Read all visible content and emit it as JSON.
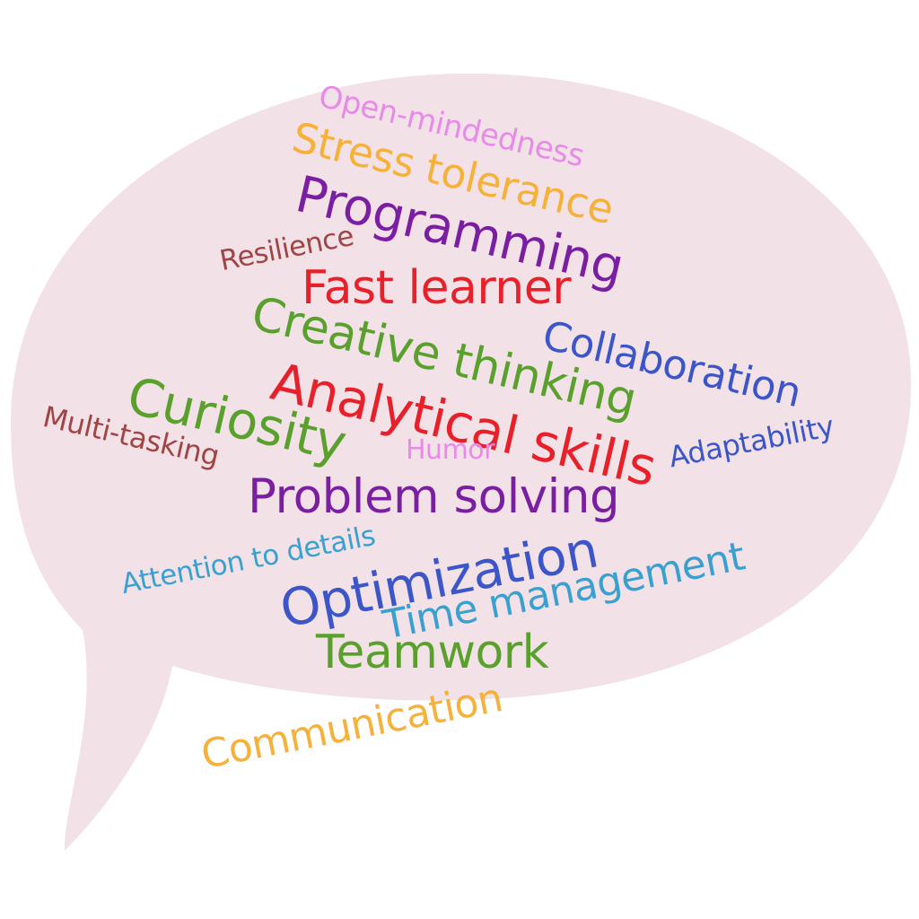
{
  "bubble": {
    "fill": "#f2e2e8"
  },
  "words": [
    {
      "id": "open-mindedness",
      "text": "Open-mindedness",
      "color": "#e88ae8"
    },
    {
      "id": "stress-tolerance",
      "text": "Stress tolerance",
      "color": "#f6b13a"
    },
    {
      "id": "programming",
      "text": "Programming",
      "color": "#7a1fa2"
    },
    {
      "id": "resilience",
      "text": "Resilience",
      "color": "#a04545"
    },
    {
      "id": "fast-learner",
      "text": "Fast learner",
      "color": "#e8202a"
    },
    {
      "id": "creative-thinking",
      "text": "Creative thinking",
      "color": "#5aa02c"
    },
    {
      "id": "collaboration",
      "text": "Collaboration",
      "color": "#3c55c8"
    },
    {
      "id": "analytical-skills",
      "text": "Analytical skills",
      "color": "#e8202a"
    },
    {
      "id": "curiosity",
      "text": "Curiosity",
      "color": "#5aa02c"
    },
    {
      "id": "multi-tasking",
      "text": "Multi-tasking",
      "color": "#a04545"
    },
    {
      "id": "humor",
      "text": "Humor",
      "color": "#e88ae8"
    },
    {
      "id": "adaptability",
      "text": "Adaptability",
      "color": "#3c55c8"
    },
    {
      "id": "problem-solving",
      "text": "Problem solving",
      "color": "#7a1fa2"
    },
    {
      "id": "attention-to-details",
      "text": "Attention to details",
      "color": "#3aa0d0"
    },
    {
      "id": "optimization",
      "text": "Optimization",
      "color": "#3c55c8"
    },
    {
      "id": "time-management",
      "text": "Time management",
      "color": "#3aa0d0"
    },
    {
      "id": "teamwork",
      "text": "Teamwork",
      "color": "#5aa02c"
    },
    {
      "id": "communication",
      "text": "Communication",
      "color": "#f6b13a"
    }
  ]
}
